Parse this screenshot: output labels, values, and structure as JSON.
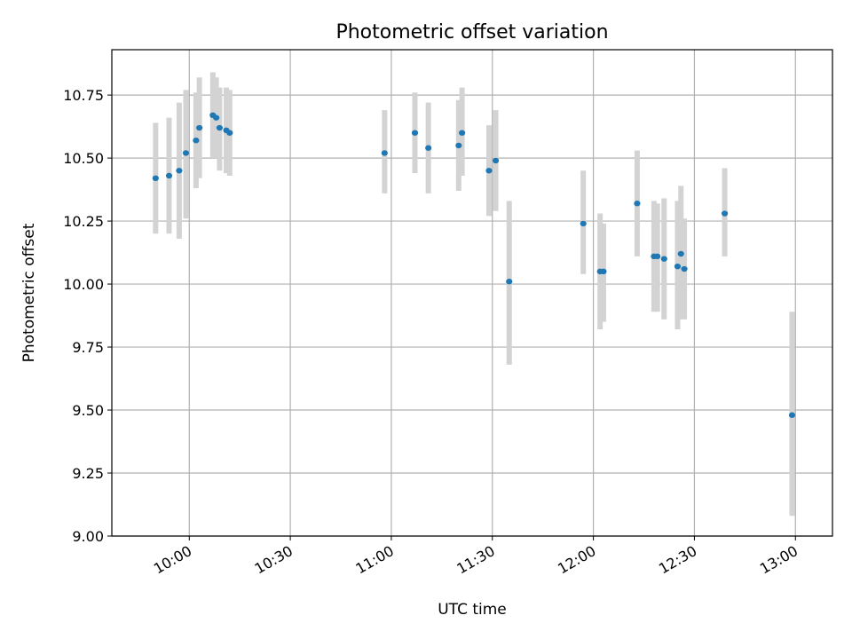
{
  "chart_data": {
    "type": "scatter",
    "title": "Photometric offset variation",
    "xlabel": "UTC time",
    "ylabel": "Photometric offset",
    "x_unit": "UTC time (HH:MM)",
    "xlim": [
      "09:37",
      "13:11"
    ],
    "ylim": [
      9.0,
      10.93
    ],
    "xticks": [
      "10:00",
      "10:30",
      "11:00",
      "11:30",
      "12:00",
      "12:30",
      "13:00"
    ],
    "yticks": [
      "9.00",
      "9.25",
      "9.50",
      "9.75",
      "10.00",
      "10.25",
      "10.50",
      "10.75"
    ],
    "grid": true,
    "colors": {
      "points": "#1f77b4",
      "errorbars": "#d3d3d3",
      "grid": "#b0b0b0"
    },
    "series": [
      {
        "points": [
          {
            "x": "09:50",
            "y": 10.42,
            "lo": 10.2,
            "hi": 10.64
          },
          {
            "x": "09:54",
            "y": 10.43,
            "lo": 10.2,
            "hi": 10.66
          },
          {
            "x": "09:57",
            "y": 10.45,
            "lo": 10.18,
            "hi": 10.72
          },
          {
            "x": "09:59",
            "y": 10.52,
            "lo": 10.26,
            "hi": 10.77
          },
          {
            "x": "10:02",
            "y": 10.57,
            "lo": 10.38,
            "hi": 10.76
          },
          {
            "x": "10:03",
            "y": 10.62,
            "lo": 10.42,
            "hi": 10.82
          },
          {
            "x": "10:07",
            "y": 10.67,
            "lo": 10.5,
            "hi": 10.84
          },
          {
            "x": "10:08",
            "y": 10.66,
            "lo": 10.5,
            "hi": 10.82
          },
          {
            "x": "10:09",
            "y": 10.62,
            "lo": 10.45,
            "hi": 10.78
          },
          {
            "x": "10:11",
            "y": 10.61,
            "lo": 10.44,
            "hi": 10.78
          },
          {
            "x": "10:12",
            "y": 10.6,
            "lo": 10.43,
            "hi": 10.77
          },
          {
            "x": "10:58",
            "y": 10.52,
            "lo": 10.36,
            "hi": 10.69
          },
          {
            "x": "11:07",
            "y": 10.6,
            "lo": 10.44,
            "hi": 10.76
          },
          {
            "x": "11:11",
            "y": 10.54,
            "lo": 10.36,
            "hi": 10.72
          },
          {
            "x": "11:20",
            "y": 10.55,
            "lo": 10.37,
            "hi": 10.73
          },
          {
            "x": "11:21",
            "y": 10.6,
            "lo": 10.43,
            "hi": 10.78
          },
          {
            "x": "11:29",
            "y": 10.45,
            "lo": 10.27,
            "hi": 10.63
          },
          {
            "x": "11:31",
            "y": 10.49,
            "lo": 10.29,
            "hi": 10.69
          },
          {
            "x": "11:35",
            "y": 10.01,
            "lo": 9.68,
            "hi": 10.33
          },
          {
            "x": "11:57",
            "y": 10.24,
            "lo": 10.04,
            "hi": 10.45
          },
          {
            "x": "12:02",
            "y": 10.05,
            "lo": 9.82,
            "hi": 10.28
          },
          {
            "x": "12:03",
            "y": 10.05,
            "lo": 9.85,
            "hi": 10.24
          },
          {
            "x": "12:13",
            "y": 10.32,
            "lo": 10.11,
            "hi": 10.53
          },
          {
            "x": "12:18",
            "y": 10.11,
            "lo": 9.89,
            "hi": 10.33
          },
          {
            "x": "12:19",
            "y": 10.11,
            "lo": 9.89,
            "hi": 10.32
          },
          {
            "x": "12:21",
            "y": 10.1,
            "lo": 9.86,
            "hi": 10.34
          },
          {
            "x": "12:25",
            "y": 10.07,
            "lo": 9.82,
            "hi": 10.33
          },
          {
            "x": "12:26",
            "y": 10.12,
            "lo": 9.86,
            "hi": 10.39
          },
          {
            "x": "12:27",
            "y": 10.06,
            "lo": 9.86,
            "hi": 10.26
          },
          {
            "x": "12:39",
            "y": 10.28,
            "lo": 10.11,
            "hi": 10.46
          },
          {
            "x": "12:59",
            "y": 9.48,
            "lo": 9.08,
            "hi": 9.89
          }
        ]
      }
    ]
  }
}
